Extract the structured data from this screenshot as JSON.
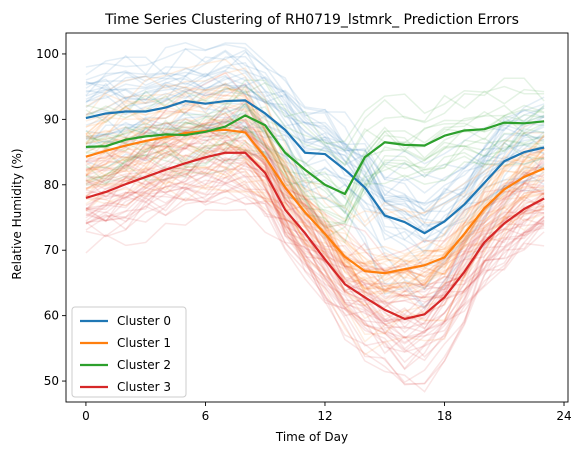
{
  "chart_data": {
    "type": "line",
    "title": "Time Series Clustering of RH0719_lstmrk_ Prediction Errors",
    "xlabel": "Time of Day",
    "ylabel": "Relative Humidity (%)",
    "xlim": [
      -1,
      24.2
    ],
    "ylim": [
      46.8,
      103.2
    ],
    "xticks": [
      0,
      6,
      12,
      18,
      24
    ],
    "yticks": [
      50,
      60,
      70,
      80,
      90,
      100
    ],
    "legend_position": "lower-left",
    "x": [
      0,
      1,
      2,
      3,
      4,
      5,
      6,
      7,
      8,
      9,
      10,
      11,
      12,
      13,
      14,
      15,
      16,
      17,
      18,
      19,
      20,
      21,
      22,
      23
    ],
    "series": [
      {
        "name": "Cluster 0",
        "color": "#1f77b4",
        "values": [
          90.2,
          90.9,
          91.2,
          91.2,
          91.8,
          92.8,
          92.4,
          92.8,
          92.9,
          90.9,
          88.4,
          84.9,
          84.7,
          82.3,
          79.6,
          75.3,
          74.3,
          72.6,
          74.4,
          77.0,
          80.3,
          83.6,
          85.0,
          85.7
        ]
      },
      {
        "name": "Cluster 1",
        "color": "#ff7f0e",
        "values": [
          84.3,
          85.2,
          86.0,
          86.7,
          87.3,
          87.9,
          88.2,
          88.4,
          88.0,
          84.2,
          79.6,
          75.8,
          72.5,
          69.0,
          66.8,
          66.5,
          67.1,
          67.7,
          68.9,
          72.5,
          76.4,
          79.3,
          81.2,
          82.5
        ]
      },
      {
        "name": "Cluster 2",
        "color": "#2ca02c",
        "values": [
          85.8,
          85.9,
          86.9,
          87.4,
          87.7,
          87.6,
          88.1,
          88.9,
          90.6,
          89.1,
          84.9,
          82.3,
          80.0,
          78.6,
          84.2,
          86.5,
          86.1,
          86.0,
          87.5,
          88.3,
          88.5,
          89.5,
          89.4,
          89.7
        ]
      },
      {
        "name": "Cluster 3",
        "color": "#d62728",
        "values": [
          78.0,
          78.9,
          80.1,
          81.2,
          82.3,
          83.3,
          84.2,
          84.9,
          84.9,
          81.8,
          76.2,
          72.6,
          68.6,
          64.8,
          62.8,
          60.9,
          59.5,
          60.2,
          62.8,
          66.7,
          71.2,
          74.1,
          76.3,
          77.9
        ]
      }
    ]
  }
}
